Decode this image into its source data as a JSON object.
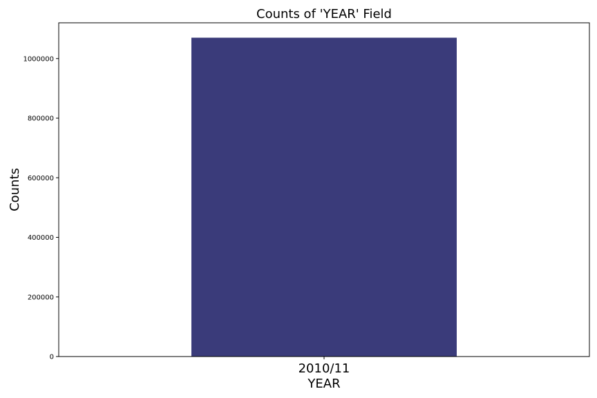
{
  "chart_data": {
    "type": "bar",
    "title": "Counts of 'YEAR' Field",
    "xlabel": "YEAR",
    "ylabel": "Counts",
    "categories": [
      "2010/11"
    ],
    "values": [
      1070000
    ],
    "ylim": [
      0,
      1120000
    ],
    "yticks": [
      "0",
      "200000",
      "400000",
      "600000",
      "800000",
      "1000000"
    ],
    "ytick_values": [
      0,
      200000,
      400000,
      600000,
      800000,
      1000000
    ],
    "grid": false,
    "colors": {
      "bar": "#3a3b7a"
    }
  }
}
